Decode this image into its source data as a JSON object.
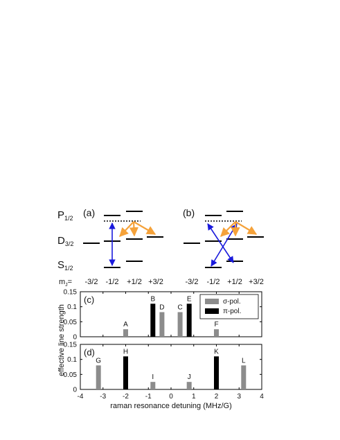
{
  "diagram": {
    "state_labels": [
      {
        "main": "P",
        "sub": "1/2"
      },
      {
        "main": "D",
        "sub": "3/2"
      },
      {
        "main": "S",
        "sub": "1/2"
      }
    ],
    "panel_a": "(a)",
    "panel_b": "(b)",
    "mj_label": {
      "main": "m",
      "sub": "J",
      "suffix": "="
    },
    "mj_values": [
      "-3/2",
      "-1/2",
      "+1/2",
      "+3/2"
    ],
    "colors": {
      "level": "#000000",
      "sigma_transition": "#1a1adc",
      "decay": "#f5a23a"
    }
  },
  "chart_data": [
    {
      "type": "bar",
      "panel": "(c)",
      "ylabel": "effective line strength",
      "xlim": [
        -4,
        4
      ],
      "ylim": [
        0,
        0.15
      ],
      "yticks": [
        "0",
        "0.05",
        "0.1",
        "0.15"
      ],
      "legend": {
        "position": "top-right",
        "entries": [
          {
            "label": "σ-pol.",
            "color": "#8c8c8c"
          },
          {
            "label": "π-pol.",
            "color": "#000000"
          }
        ]
      },
      "bars": [
        {
          "label": "A",
          "x": -2,
          "value": 0.025,
          "pol": "sigma"
        },
        {
          "label": "B",
          "x": -0.8,
          "value": 0.11,
          "pol": "pi"
        },
        {
          "label": "D",
          "x": -0.4,
          "value": 0.082,
          "pol": "sigma"
        },
        {
          "label": "C",
          "x": 0.4,
          "value": 0.082,
          "pol": "sigma"
        },
        {
          "label": "E",
          "x": 0.8,
          "value": 0.11,
          "pol": "pi"
        },
        {
          "label": "F",
          "x": 2,
          "value": 0.025,
          "pol": "sigma"
        }
      ]
    },
    {
      "type": "bar",
      "panel": "(d)",
      "xlabel": "raman resonance detuning (MHz/G)",
      "xlim": [
        -4,
        4
      ],
      "ylim": [
        0,
        0.15
      ],
      "xticks": [
        "-4",
        "-3",
        "-2",
        "-1",
        "0",
        "1",
        "2",
        "3",
        "4"
      ],
      "yticks": [
        "0",
        "0.05",
        "0.1",
        "0.15"
      ],
      "bars": [
        {
          "label": "G",
          "x": -3.2,
          "value": 0.08,
          "pol": "sigma"
        },
        {
          "label": "H",
          "x": -2,
          "value": 0.11,
          "pol": "pi"
        },
        {
          "label": "I",
          "x": -0.8,
          "value": 0.025,
          "pol": "sigma"
        },
        {
          "label": "J",
          "x": 0.8,
          "value": 0.025,
          "pol": "sigma"
        },
        {
          "label": "K",
          "x": 2,
          "value": 0.11,
          "pol": "pi"
        },
        {
          "label": "L",
          "x": 3.2,
          "value": 0.08,
          "pol": "sigma"
        }
      ]
    }
  ]
}
